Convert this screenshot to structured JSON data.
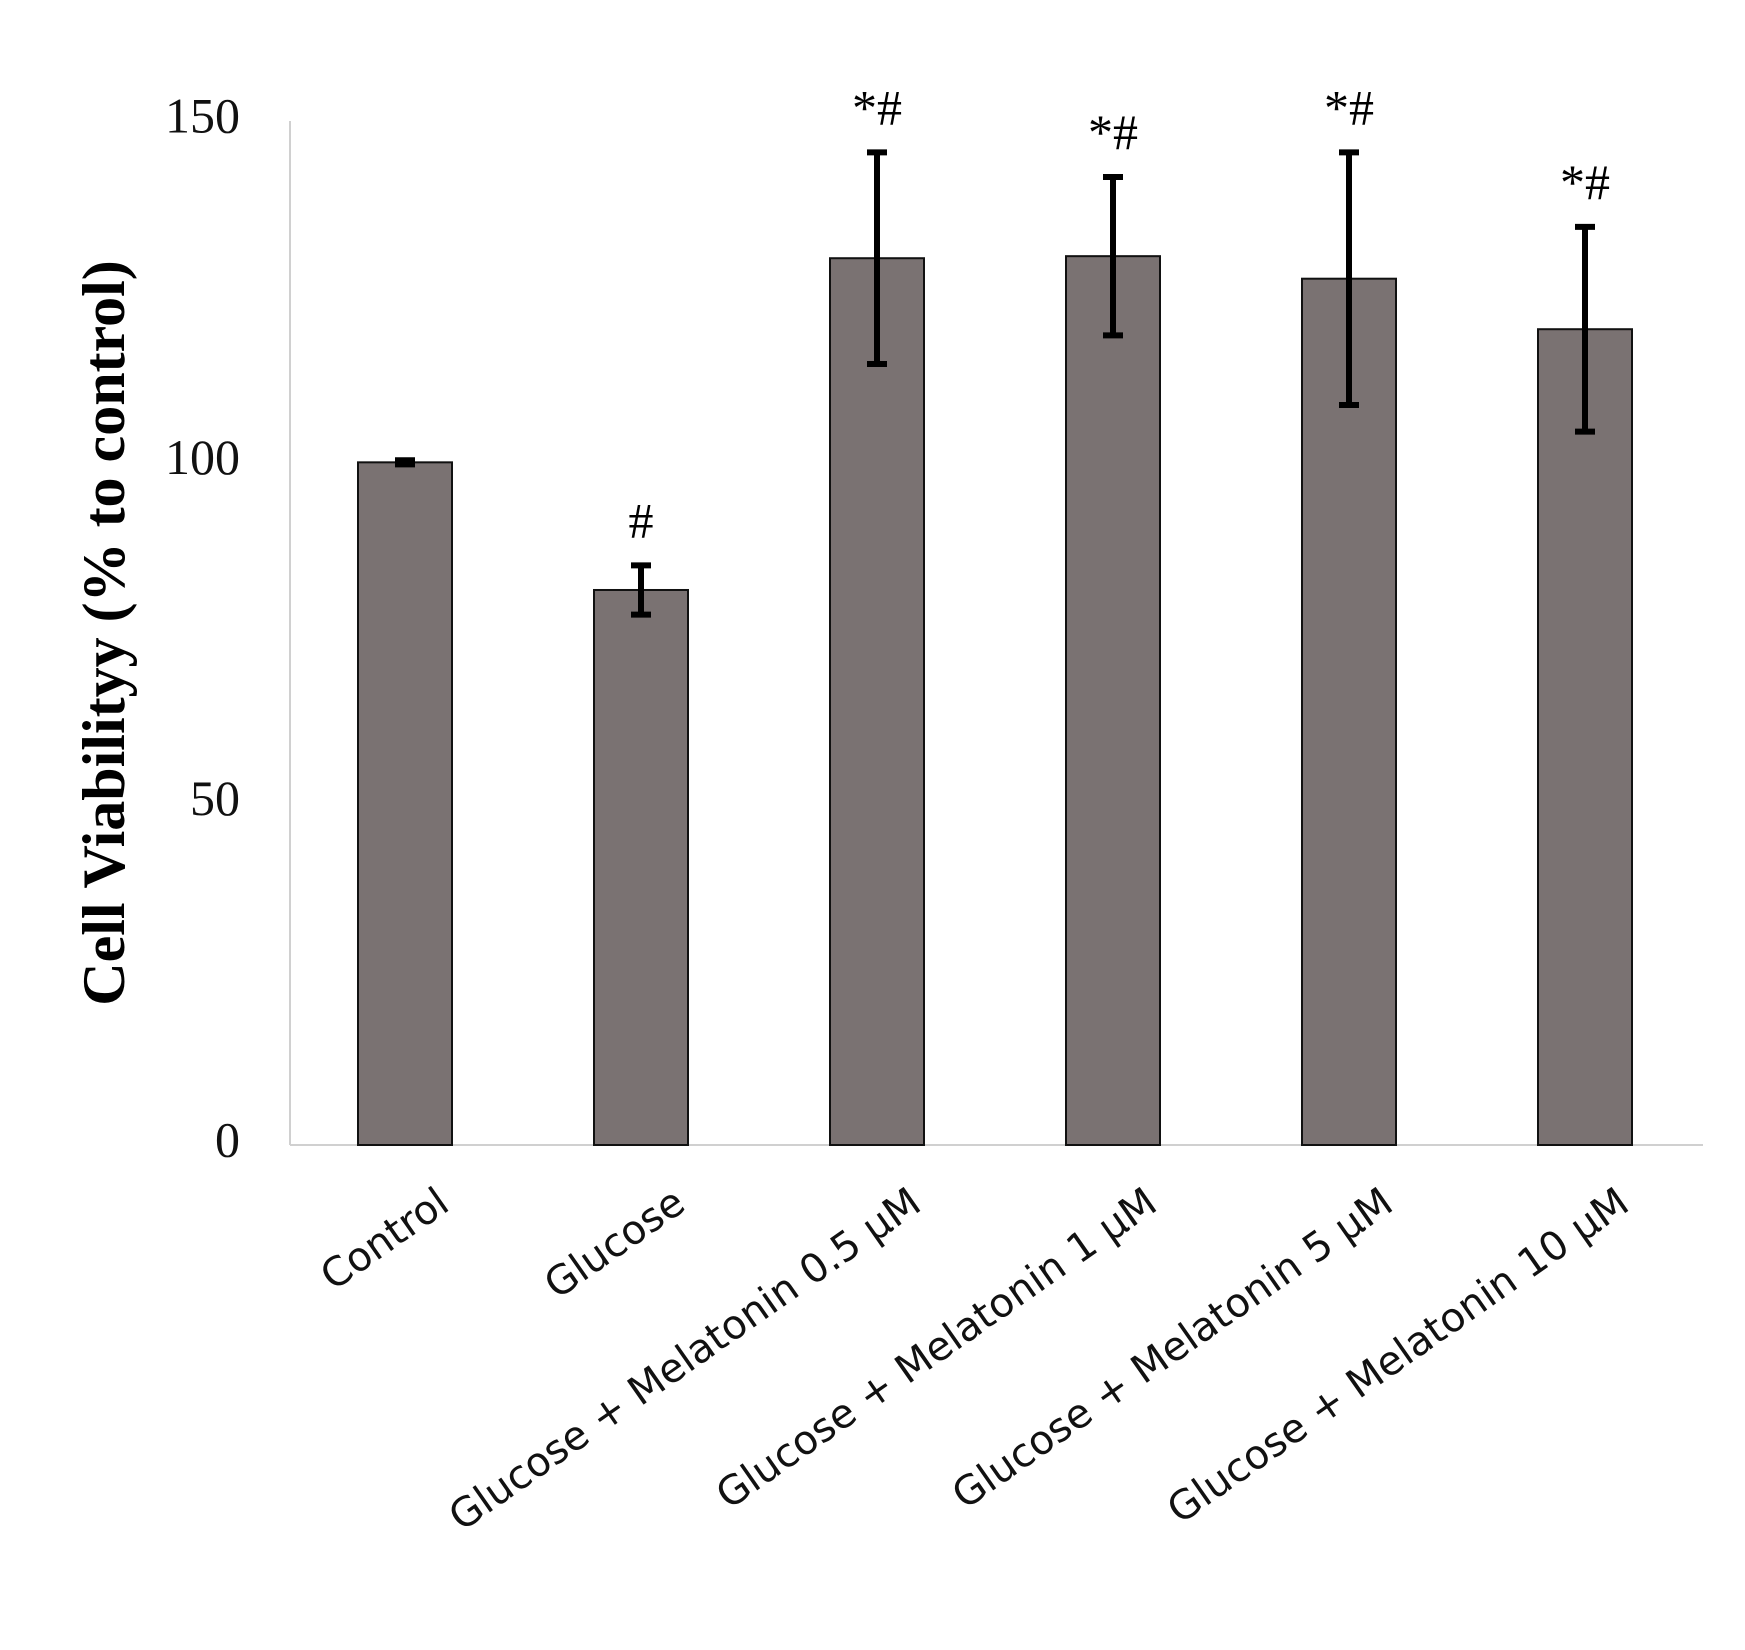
{
  "chart_data": {
    "type": "bar",
    "y_label": "Cell Viabilityy (% to control)",
    "categories": [
      "Control",
      "Glucose",
      "Glucose + Melatonin 0.5 μM",
      "Glucose + Melatonin 1 μM",
      "Glucose + Melatonin 5 μM",
      "Glucose + Melatonin 10 μM"
    ],
    "values": [
      100,
      81.3,
      129.9,
      130.2,
      126.9,
      119.5
    ],
    "errors": [
      0.3,
      3.6,
      15.5,
      11.6,
      18.5,
      15
    ],
    "annotations": [
      null,
      "#",
      "*#",
      "*#",
      "*#",
      "*#"
    ],
    "color": "#7a7272",
    "ylim": [
      0,
      150
    ],
    "yticks": [
      0,
      50,
      100,
      150
    ],
    "grid": false
  }
}
